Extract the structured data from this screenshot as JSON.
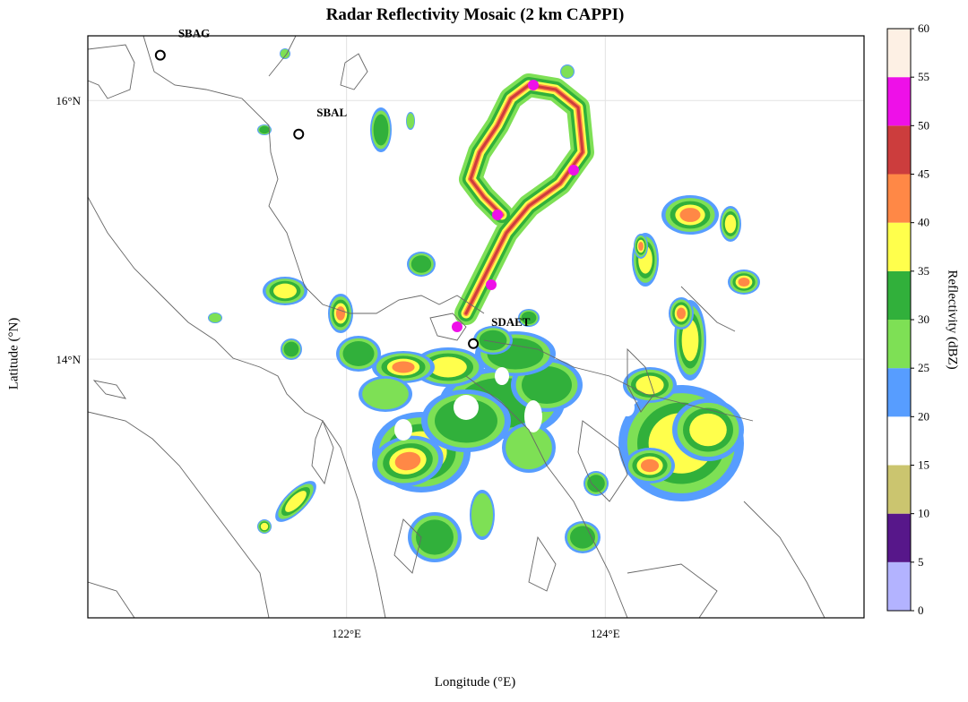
{
  "title": "Radar Reflectivity Mosaic (2 km CAPPI)",
  "axes": {
    "xlabel": "Longitude (°E)",
    "ylabel": "Latitude (°N)",
    "xticks": [
      {
        "value": 122,
        "label": "122°E"
      },
      {
        "value": 124,
        "label": "124°E"
      }
    ],
    "yticks": [
      {
        "value": 16,
        "label": "16°N"
      },
      {
        "value": 14,
        "label": "14°N"
      }
    ],
    "lon_range": [
      120.0,
      126.0
    ],
    "lat_range": [
      12.0,
      16.5
    ]
  },
  "stations": [
    {
      "id": "SBAG",
      "lon": 120.56,
      "lat": 16.35
    },
    {
      "id": "SBAL",
      "lon": 121.63,
      "lat": 15.74
    },
    {
      "id": "SDAET",
      "lon": 122.98,
      "lat": 14.12
    }
  ],
  "colorbar": {
    "label": "Reflectivity (dBZ)",
    "ticks": [
      "0",
      "5",
      "10",
      "15",
      "20",
      "25",
      "30",
      "35",
      "40",
      "45",
      "50",
      "55",
      "60"
    ],
    "colors": [
      "#b3b3ff",
      "#57178a",
      "#cbc56f",
      "#ffffff",
      "#579dff",
      "#7ee055",
      "#31b03b",
      "#ffff4c",
      "#ff8846",
      "#cc3d3d",
      "#ee10e8",
      "#fdf0e4"
    ]
  }
}
